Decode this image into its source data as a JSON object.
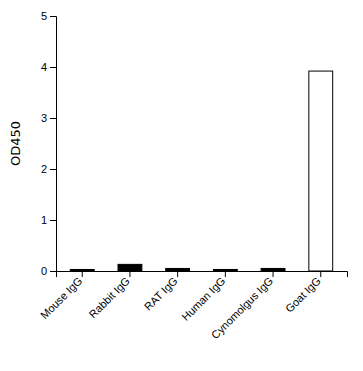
{
  "chart_data": {
    "type": "bar",
    "categories": [
      "Mouse IgG",
      "Rabbit IgG",
      "RAT IgG",
      "Human IgG",
      "Cynomolgus IgG",
      "Goat IgG"
    ],
    "values": [
      0.03,
      0.13,
      0.05,
      0.03,
      0.05,
      3.92
    ],
    "colors": [
      "#000000",
      "#000000",
      "#000000",
      "#000000",
      "#000000",
      "#ffffff"
    ],
    "ylabel": "OD450",
    "ylim": [
      0,
      5
    ],
    "yticks": [
      0,
      1,
      2,
      3,
      4,
      5
    ]
  }
}
